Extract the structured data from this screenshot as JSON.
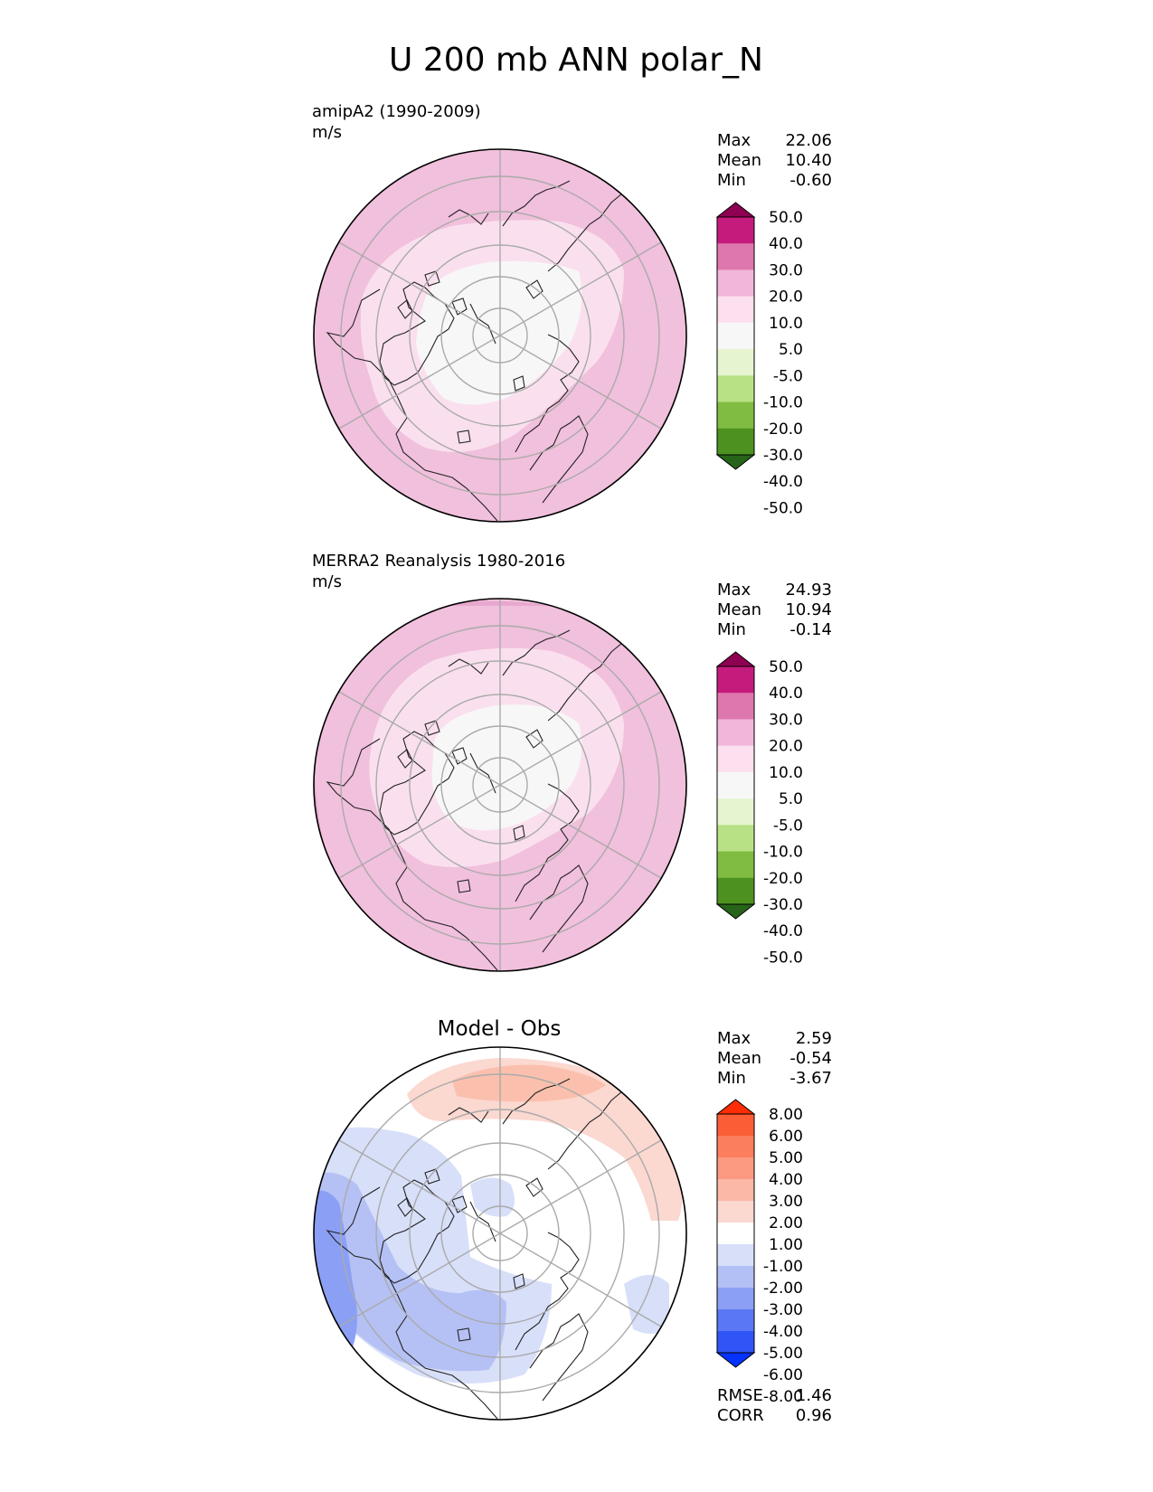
{
  "figure": {
    "title": "U 200 mb ANN polar_N"
  },
  "panels": [
    {
      "title_line1": "amipA2 (1990-2009)",
      "title_line2": "m/s",
      "center_title": "",
      "stats": [
        {
          "label": "Max",
          "value": "22.06"
        },
        {
          "label": "Mean",
          "value": "10.40"
        },
        {
          "label": "Min",
          "value": "-0.60"
        }
      ],
      "colorbar": {
        "colors": [
          "#276419",
          "#4d9221",
          "#7fbc41",
          "#b8e186",
          "#e6f5d0",
          "#f7f7f7",
          "#fde0ef",
          "#f1b6da",
          "#de77ae",
          "#c51b7d",
          "#8e0152"
        ],
        "labels": [
          "50.0",
          "40.0",
          "30.0",
          "20.0",
          "10.0",
          "5.0",
          "-5.0",
          "-10.0",
          "-20.0",
          "-30.0",
          "-40.0",
          "-50.0"
        ]
      },
      "bottom_stats": []
    },
    {
      "title_line1": "MERRA2 Reanalysis 1980-2016",
      "title_line2": "m/s",
      "center_title": "",
      "stats": [
        {
          "label": "Max",
          "value": "24.93"
        },
        {
          "label": "Mean",
          "value": "10.94"
        },
        {
          "label": "Min",
          "value": "-0.14"
        }
      ],
      "colorbar": {
        "colors": [
          "#276419",
          "#4d9221",
          "#7fbc41",
          "#b8e186",
          "#e6f5d0",
          "#f7f7f7",
          "#fde0ef",
          "#f1b6da",
          "#de77ae",
          "#c51b7d",
          "#8e0152"
        ],
        "labels": [
          "50.0",
          "40.0",
          "30.0",
          "20.0",
          "10.0",
          "5.0",
          "-5.0",
          "-10.0",
          "-20.0",
          "-30.0",
          "-40.0",
          "-50.0"
        ]
      },
      "bottom_stats": []
    },
    {
      "title_line1": "",
      "title_line2": "",
      "center_title": "Model - Obs",
      "stats": [
        {
          "label": "Max",
          "value": "2.59"
        },
        {
          "label": "Mean",
          "value": "-0.54"
        },
        {
          "label": "Min",
          "value": "-3.67"
        }
      ],
      "colorbar": {
        "colors": [
          "#0532ff",
          "#2f55f7",
          "#5a78f4",
          "#8b9ff5",
          "#b3c0f6",
          "#d8dff9",
          "#ffffff",
          "#fbd8d0",
          "#fbb8a6",
          "#fb9a80",
          "#fb7f5e",
          "#fb5e36",
          "#ff2d05"
        ],
        "labels": [
          "8.00",
          "6.00",
          "5.00",
          "4.00",
          "3.00",
          "2.00",
          "1.00",
          "-1.00",
          "-2.00",
          "-3.00",
          "-4.00",
          "-5.00",
          "-6.00",
          "-8.00"
        ]
      },
      "bottom_stats": [
        {
          "label": "RMSE",
          "value": "1.46"
        },
        {
          "label": "CORR",
          "value": "0.96"
        }
      ]
    }
  ],
  "chart_data": [
    {
      "type": "heatmap",
      "title": "amipA2 (1990-2009)",
      "units": "m/s",
      "projection": "north polar stereographic",
      "levels": [
        -50,
        -40,
        -30,
        -20,
        -10,
        -5,
        5,
        10,
        20,
        30,
        40,
        50
      ],
      "extend": "both",
      "stats": {
        "max": 22.06,
        "mean": 10.4,
        "min": -0.6
      }
    },
    {
      "type": "heatmap",
      "title": "MERRA2 Reanalysis 1980-2016",
      "units": "m/s",
      "projection": "north polar stereographic",
      "levels": [
        -50,
        -40,
        -30,
        -20,
        -10,
        -5,
        5,
        10,
        20,
        30,
        40,
        50
      ],
      "extend": "both",
      "stats": {
        "max": 24.93,
        "mean": 10.94,
        "min": -0.14
      }
    },
    {
      "type": "heatmap",
      "title": "Model - Obs",
      "projection": "north polar stereographic",
      "levels": [
        -8,
        -6,
        -5,
        -4,
        -3,
        -2,
        -1,
        1,
        2,
        3,
        4,
        5,
        6,
        8
      ],
      "extend": "both",
      "stats": {
        "max": 2.59,
        "mean": -0.54,
        "min": -3.67,
        "rmse": 1.46,
        "corr": 0.96
      }
    }
  ]
}
